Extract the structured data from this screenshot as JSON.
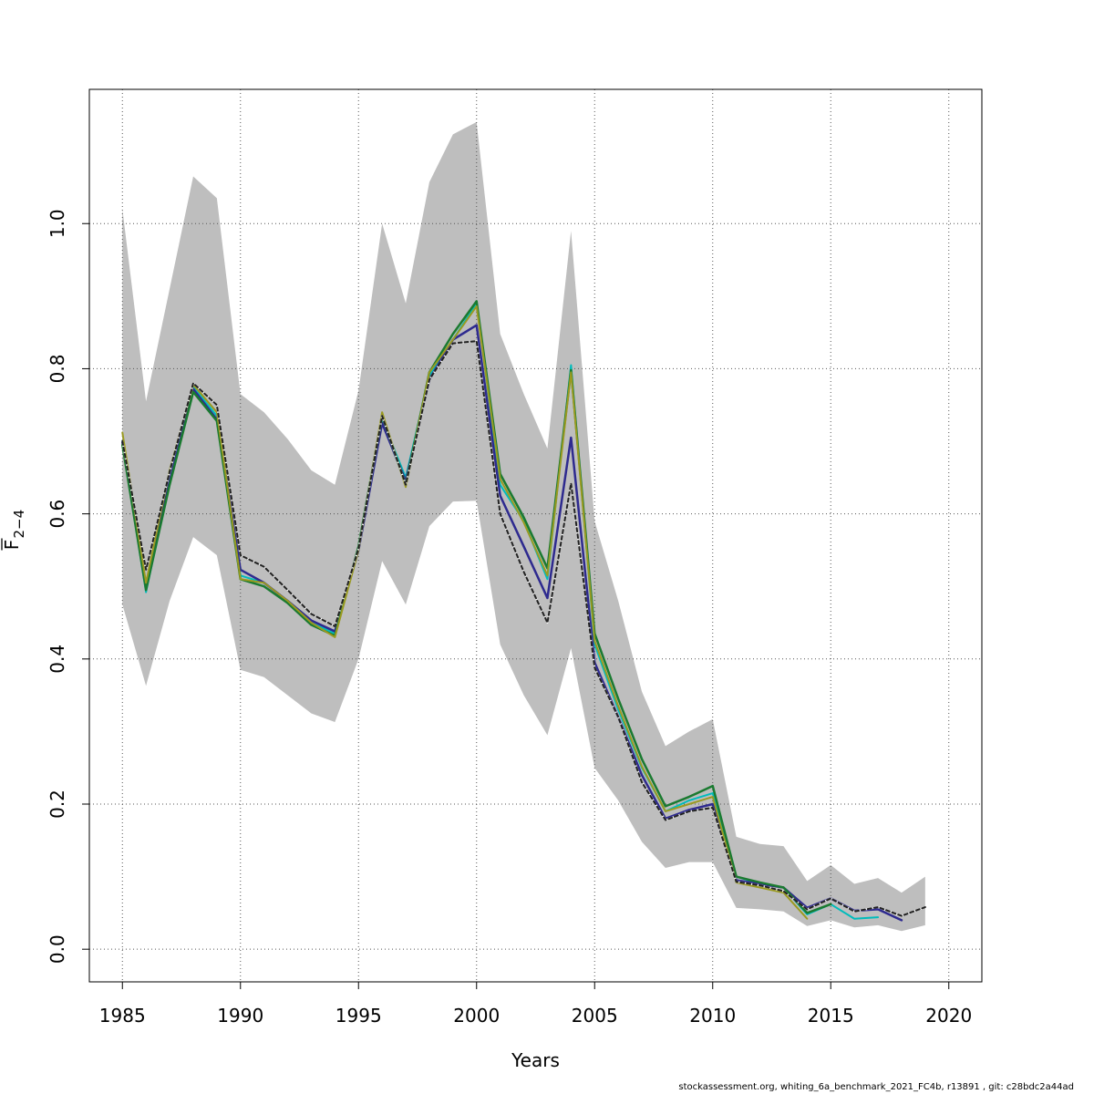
{
  "chart_data": {
    "type": "line",
    "title": "",
    "xlabel": "Years",
    "ylabel_main": "F",
    "ylabel_sub": "2−4",
    "xlim": [
      1983.6,
      2021.4
    ],
    "ylim": [
      -0.045,
      1.185
    ],
    "x_ticks": [
      1985,
      1990,
      1995,
      2000,
      2005,
      2010,
      2015,
      2020
    ],
    "x_tick_labels": [
      "1985",
      "1990",
      "1995",
      "2000",
      "2005",
      "2010",
      "2015",
      "2020"
    ],
    "y_ticks": [
      0.0,
      0.2,
      0.4,
      0.6,
      0.8,
      1.0
    ],
    "y_tick_labels": [
      "0.0",
      "0.2",
      "0.4",
      "0.6",
      "0.8",
      "1.0"
    ],
    "grid": true,
    "confidence_band": {
      "color": "#bebebe",
      "x": [
        1985,
        1986,
        1987,
        1988,
        1989,
        1990,
        1991,
        1992,
        1993,
        1994,
        1995,
        1996,
        1997,
        1998,
        1999,
        2000,
        2001,
        2002,
        2003,
        2004,
        2005,
        2006,
        2007,
        2008,
        2009,
        2010,
        2011,
        2012,
        2013,
        2014,
        2015,
        2016,
        2017,
        2018,
        2019
      ],
      "lower": [
        0.475,
        0.363,
        0.48,
        0.568,
        0.543,
        0.385,
        0.375,
        0.35,
        0.325,
        0.313,
        0.4,
        0.535,
        0.475,
        0.583,
        0.617,
        0.618,
        0.42,
        0.35,
        0.295,
        0.415,
        0.25,
        0.205,
        0.148,
        0.112,
        0.12,
        0.12,
        0.057,
        0.055,
        0.052,
        0.032,
        0.04,
        0.03,
        0.033,
        0.025,
        0.033
      ],
      "upper": [
        1.02,
        0.755,
        0.91,
        1.065,
        1.035,
        0.765,
        0.74,
        0.703,
        0.66,
        0.64,
        0.77,
        1.0,
        0.89,
        1.057,
        1.123,
        1.14,
        0.848,
        0.765,
        0.69,
        0.99,
        0.59,
        0.48,
        0.355,
        0.28,
        0.3,
        0.317,
        0.155,
        0.145,
        0.142,
        0.094,
        0.116,
        0.09,
        0.098,
        0.078,
        0.1
      ]
    },
    "series": [
      {
        "color": "#00bcbc",
        "width": 2,
        "dash": "",
        "x": [
          1985,
          1986,
          1987,
          1988,
          1989,
          1990,
          1991,
          1992,
          1993,
          1994,
          1995,
          1996,
          1997,
          1998,
          1999,
          2000,
          2001,
          2002,
          2003,
          2004,
          2005,
          2006,
          2007,
          2008,
          2009,
          2010,
          2011,
          2012,
          2013,
          2014,
          2015,
          2016,
          2017,
          2018
        ],
        "values": [
          0.7,
          0.492,
          0.645,
          0.775,
          0.735,
          0.515,
          0.505,
          0.48,
          0.45,
          0.435,
          0.55,
          0.73,
          0.65,
          0.79,
          0.84,
          0.89,
          0.64,
          0.59,
          0.51,
          0.805,
          0.42,
          0.33,
          0.25,
          0.19,
          0.205,
          0.215,
          0.1,
          0.09,
          0.085,
          0.048,
          0.062,
          0.042,
          0.044,
          null
        ]
      },
      {
        "color": "#2e2a8f",
        "width": 2.5,
        "dash": "",
        "x": [
          1985,
          1986,
          1987,
          1988,
          1989,
          1990,
          1991,
          1992,
          1993,
          1994,
          1995,
          1996,
          1997,
          1998,
          1999,
          2000,
          2001,
          2002,
          2003,
          2004,
          2005,
          2006,
          2007,
          2008,
          2009,
          2010,
          2011,
          2012,
          2013,
          2014,
          2015,
          2016,
          2017,
          2018
        ],
        "values": [
          0.698,
          0.5,
          0.645,
          0.772,
          0.73,
          0.523,
          0.505,
          0.48,
          0.453,
          0.438,
          0.55,
          0.725,
          0.645,
          0.785,
          0.84,
          0.86,
          0.625,
          0.555,
          0.484,
          0.705,
          0.395,
          0.32,
          0.24,
          0.18,
          0.192,
          0.2,
          0.095,
          0.09,
          0.085,
          0.057,
          0.07,
          0.053,
          0.055,
          0.04
        ]
      },
      {
        "color": "#1a7a30",
        "width": 2.5,
        "dash": "",
        "x": [
          1985,
          1986,
          1987,
          1988,
          1989,
          1990,
          1991,
          1992,
          1993,
          1994,
          1995,
          1996,
          1997,
          1998,
          1999,
          2000,
          2001,
          2002,
          2003,
          2004,
          2005,
          2006,
          2007,
          2008,
          2009,
          2010,
          2011,
          2012,
          2013,
          2014,
          2015
        ],
        "values": [
          0.695,
          0.495,
          0.64,
          0.768,
          0.728,
          0.51,
          0.5,
          0.477,
          0.447,
          0.432,
          0.555,
          0.735,
          0.64,
          0.795,
          0.848,
          0.893,
          0.655,
          0.595,
          0.525,
          0.798,
          0.435,
          0.345,
          0.262,
          0.197,
          0.21,
          0.225,
          0.1,
          0.092,
          0.085,
          0.05,
          0.062
        ]
      },
      {
        "color": "#9a9a20",
        "width": 2,
        "dash": "",
        "x": [
          1985,
          1986,
          1987,
          1988,
          1989,
          1990,
          1991,
          1992,
          1993,
          1994,
          1995,
          1996,
          1997,
          1998,
          1999,
          2000,
          2001,
          2002,
          2003,
          2004,
          2005,
          2006,
          2007,
          2008,
          2009,
          2010,
          2011,
          2012,
          2013,
          2014
        ],
        "values": [
          0.712,
          0.505,
          0.66,
          0.778,
          0.74,
          0.51,
          0.505,
          0.48,
          0.45,
          0.43,
          0.55,
          0.74,
          0.637,
          0.795,
          0.84,
          0.886,
          0.648,
          0.588,
          0.515,
          0.795,
          0.425,
          0.335,
          0.252,
          0.19,
          0.2,
          0.21,
          0.092,
          0.085,
          0.078,
          0.042
        ]
      },
      {
        "color": "#222222",
        "width": 2,
        "dash": "4,3",
        "x": [
          1985,
          1986,
          1987,
          1988,
          1989,
          1990,
          1991,
          1992,
          1993,
          1994,
          1995,
          1996,
          1997,
          1998,
          1999,
          2000,
          2001,
          2002,
          2003,
          2004,
          2005,
          2006,
          2007,
          2008,
          2009,
          2010,
          2011,
          2012,
          2013,
          2014,
          2015,
          2016,
          2017,
          2018,
          2019
        ],
        "values": [
          0.7,
          0.523,
          0.658,
          0.78,
          0.75,
          0.543,
          0.527,
          0.495,
          0.462,
          0.445,
          0.552,
          0.735,
          0.64,
          0.785,
          0.835,
          0.838,
          0.6,
          0.52,
          0.45,
          0.642,
          0.388,
          0.32,
          0.23,
          0.178,
          0.19,
          0.195,
          0.093,
          0.088,
          0.08,
          0.055,
          0.07,
          0.052,
          0.058,
          0.046,
          0.058
        ]
      }
    ]
  },
  "footer": {
    "text": "stockassessment.org, whiting_6a_benchmark_2021_FC4b, r13891 , git: c28bdc2a44ad"
  }
}
